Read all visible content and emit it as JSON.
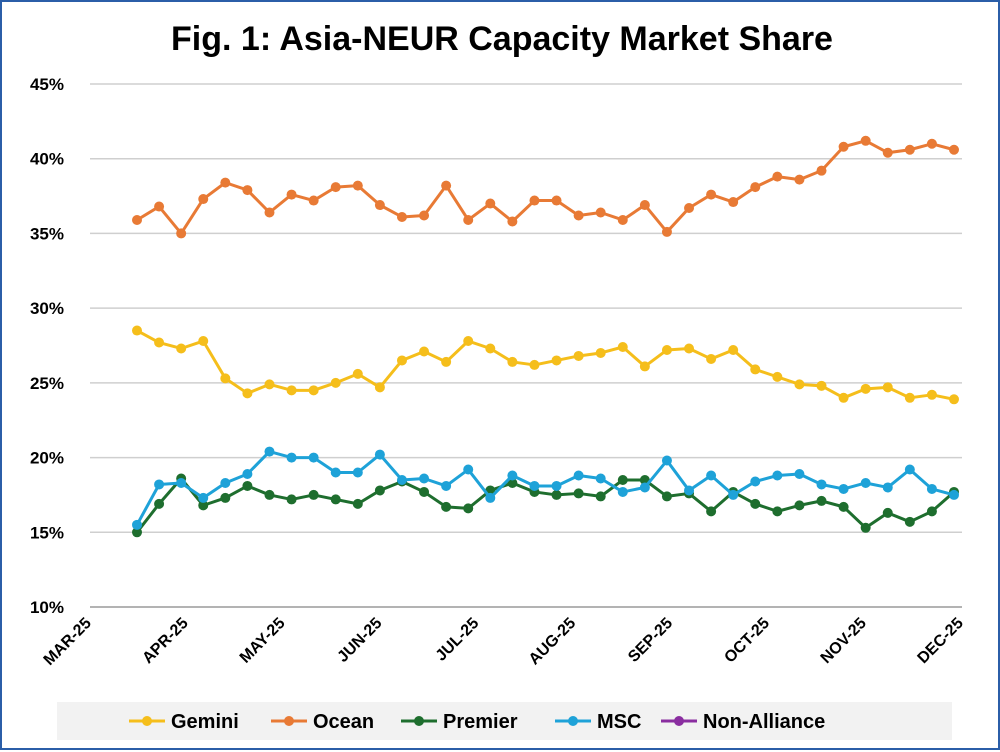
{
  "chart_data": {
    "type": "line",
    "title": "Fig. 1: Asia-NEUR Capacity Market Share",
    "xlabel": "",
    "ylabel": "",
    "y_tick_labels": [
      "10%",
      "15%",
      "20%",
      "25%",
      "30%",
      "35%",
      "40%",
      "45%"
    ],
    "ylim": [
      0.1,
      0.45
    ],
    "x_tick_labels": [
      "MAR-25",
      "APR-25",
      "MAY-25",
      "JUN-25",
      "JUL-25",
      "AUG-25",
      "SEP-25",
      "OCT-25",
      "NOV-25",
      "DEC-25"
    ],
    "x_range_months": [
      "2025-03-01",
      "2025-12-01"
    ],
    "grid": true,
    "legend_position": "bottom",
    "series": [
      {
        "name": "Gemini",
        "color": "#f5be1b",
        "values": [
          0.285,
          0.277,
          0.273,
          0.278,
          0.253,
          0.243,
          0.249,
          0.245,
          0.245,
          0.25,
          0.256,
          0.247,
          0.265,
          0.271,
          0.264,
          0.278,
          0.273,
          0.264,
          0.262,
          0.265,
          0.268,
          0.27,
          0.274,
          0.261,
          0.272,
          0.273,
          0.266,
          0.272,
          0.259,
          0.254,
          0.249,
          0.248,
          0.24,
          0.246,
          0.247,
          0.24,
          0.242,
          0.239
        ]
      },
      {
        "name": "Ocean",
        "color": "#e87a35",
        "values": [
          0.359,
          0.368,
          0.35,
          0.373,
          0.384,
          0.379,
          0.364,
          0.376,
          0.372,
          0.381,
          0.382,
          0.369,
          0.361,
          0.362,
          0.382,
          0.359,
          0.37,
          0.358,
          0.372,
          0.372,
          0.362,
          0.364,
          0.359,
          0.369,
          0.351,
          0.367,
          0.376,
          0.371,
          0.381,
          0.388,
          0.386,
          0.392,
          0.408,
          0.412,
          0.404,
          0.406,
          0.41,
          0.406
        ]
      },
      {
        "name": "Premier",
        "color": "#1e6e2e",
        "values": [
          0.15,
          0.169,
          0.186,
          0.168,
          0.173,
          0.181,
          0.175,
          0.172,
          0.175,
          0.172,
          0.169,
          0.178,
          0.184,
          0.177,
          0.167,
          0.166,
          0.178,
          0.183,
          0.177,
          0.175,
          0.176,
          0.174,
          0.185,
          0.185,
          0.174,
          0.176,
          0.164,
          0.177,
          0.169,
          0.164,
          0.168,
          0.171,
          0.167,
          0.153,
          0.163,
          0.157,
          0.164,
          0.177
        ]
      },
      {
        "name": "MSC",
        "color": "#1ea2d8",
        "values": [
          0.155,
          0.182,
          0.183,
          0.173,
          0.183,
          0.189,
          0.204,
          0.2,
          0.2,
          0.19,
          0.19,
          0.202,
          0.185,
          0.186,
          0.181,
          0.192,
          0.173,
          0.188,
          0.181,
          0.181,
          0.188,
          0.186,
          0.177,
          0.18,
          0.198,
          0.178,
          0.188,
          0.175,
          0.184,
          0.188,
          0.189,
          0.182,
          0.179,
          0.183,
          0.18,
          0.192,
          0.179,
          0.175
        ]
      },
      {
        "name": "Non-Alliance",
        "color": "#8a2ea0",
        "values": []
      }
    ]
  }
}
